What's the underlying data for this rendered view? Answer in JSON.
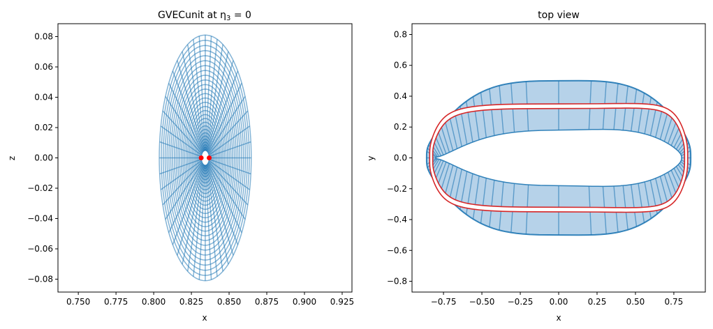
{
  "figure": {
    "left_title": "GVECunit at η",
    "left_title_sub": "3",
    "left_title_tail": " = 0",
    "right_title": "top view"
  },
  "chart_data": [
    {
      "type": "line",
      "title": "GVECunit at η3 = 0",
      "xlabel": "x",
      "ylabel": "z",
      "xlim": [
        0.7365,
        0.9315
      ],
      "ylim": [
        -0.0885,
        0.0885
      ],
      "xticks": [
        0.75,
        0.775,
        0.8,
        0.825,
        0.85,
        0.875,
        0.9,
        0.925
      ],
      "xticklabels": [
        "0.750",
        "0.775",
        "0.800",
        "0.825",
        "0.850",
        "0.875",
        "0.900",
        "0.925"
      ],
      "yticks": [
        -0.08,
        -0.06,
        -0.04,
        -0.02,
        0.0,
        0.02,
        0.04,
        0.06,
        0.08
      ],
      "yticklabels": [
        "−0.08",
        "−0.06",
        "−0.04",
        "−0.02",
        "0.00",
        "0.02",
        "0.04",
        "0.06",
        "0.08"
      ],
      "grid": false,
      "geometry": {
        "center_x": 0.8342,
        "center_z": 0.0,
        "outer_half_width": 0.0305,
        "outer_half_height": 0.081,
        "inner_half_width": 0.0012,
        "inner_half_height": 0.0035,
        "radial_surfaces": 30,
        "poloidal_lines": 48
      },
      "markers": {
        "x": [
          0.8315,
          0.8368
        ],
        "y": [
          0.0,
          0.0
        ],
        "color": "#ff0000"
      },
      "line_color": "#1f77b4"
    },
    {
      "type": "line",
      "title": "top view",
      "xlabel": "x",
      "ylabel": "y",
      "xlim": [
        -0.955,
        0.955
      ],
      "ylim": [
        -0.87,
        0.87
      ],
      "xticks": [
        -0.75,
        -0.5,
        -0.25,
        0.0,
        0.25,
        0.5,
        0.75
      ],
      "xticklabels": [
        "−0.75",
        "−0.50",
        "−0.25",
        "0.00",
        "0.25",
        "0.50",
        "0.75"
      ],
      "yticks": [
        -0.8,
        -0.6,
        -0.4,
        -0.2,
        0.0,
        0.2,
        0.4,
        0.6,
        0.8
      ],
      "yticklabels": [
        "−0.8",
        "−0.6",
        "−0.4",
        "−0.2",
        "0.0",
        "0.2",
        "0.4",
        "0.6",
        "0.8"
      ],
      "grid": false,
      "geometry": {
        "outer_half_x": 0.86,
        "outer_half_y_center": 0.5,
        "outer_half_y_edge": 0.2,
        "inner_half_x": 0.8,
        "inner_half_y_center": 0.18,
        "inner_half_y_edge": 0.04,
        "red_outer_half_x": 0.84,
        "red_outer_half_y": 0.35,
        "red_inner_half_x": 0.82,
        "red_inner_half_y": 0.32,
        "toroidal_lines": 80
      },
      "line_color": "#1f77b4",
      "boundary_color": "#d62728"
    }
  ]
}
